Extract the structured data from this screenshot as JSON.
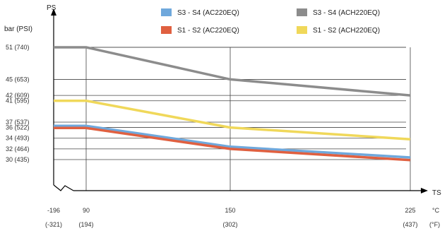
{
  "chart_data": {
    "type": "line",
    "title": "",
    "y_axis_name": "PS",
    "x_axis_name": "TS",
    "ylabel": "bar (PSI)",
    "xlabel_units": [
      "°C",
      "(°F)"
    ],
    "x_ticks": [
      {
        "value": -196,
        "label": "-196",
        "sub": "(-321)"
      },
      {
        "value": 90,
        "label": "90",
        "sub": "(194)"
      },
      {
        "value": 150,
        "label": "150",
        "sub": "(302)"
      },
      {
        "value": 225,
        "label": "225",
        "sub": "(437)"
      }
    ],
    "y_ticks": [
      {
        "value": 51,
        "label": "51  (740)"
      },
      {
        "value": 45,
        "label": "45  (653)"
      },
      {
        "value": 42,
        "label": "42  (609)"
      },
      {
        "value": 41,
        "label": "41  (595)"
      },
      {
        "value": 37,
        "label": "37  (537)"
      },
      {
        "value": 36,
        "label": "36  (522)"
      },
      {
        "value": 34,
        "label": "34  (493)"
      },
      {
        "value": 32,
        "label": "32  (464)"
      },
      {
        "value": 30,
        "label": "30  (435)"
      }
    ],
    "grid": true,
    "legend_position": "top-right",
    "series": [
      {
        "name": "S3 - S4   (AC220EQ)",
        "color": "#6fa8dc",
        "x": [
          -196,
          90,
          150,
          225
        ],
        "y": [
          36.3,
          36.3,
          32.4,
          30.4
        ]
      },
      {
        "name": "S1 - S2   (AC220EQ)",
        "color": "#e06040",
        "x": [
          -196,
          90,
          150,
          225
        ],
        "y": [
          35.9,
          35.9,
          32.0,
          29.9
        ]
      },
      {
        "name": "S3 - S4   (ACH220EQ)",
        "color": "#8c8c8c",
        "x": [
          -196,
          90,
          150,
          225
        ],
        "y": [
          51,
          51,
          45,
          42
        ]
      },
      {
        "name": "S1 - S2   (ACH220EQ)",
        "color": "#f0d85a",
        "x": [
          -196,
          90,
          150,
          225
        ],
        "y": [
          41,
          41,
          36,
          33.8
        ]
      }
    ]
  }
}
